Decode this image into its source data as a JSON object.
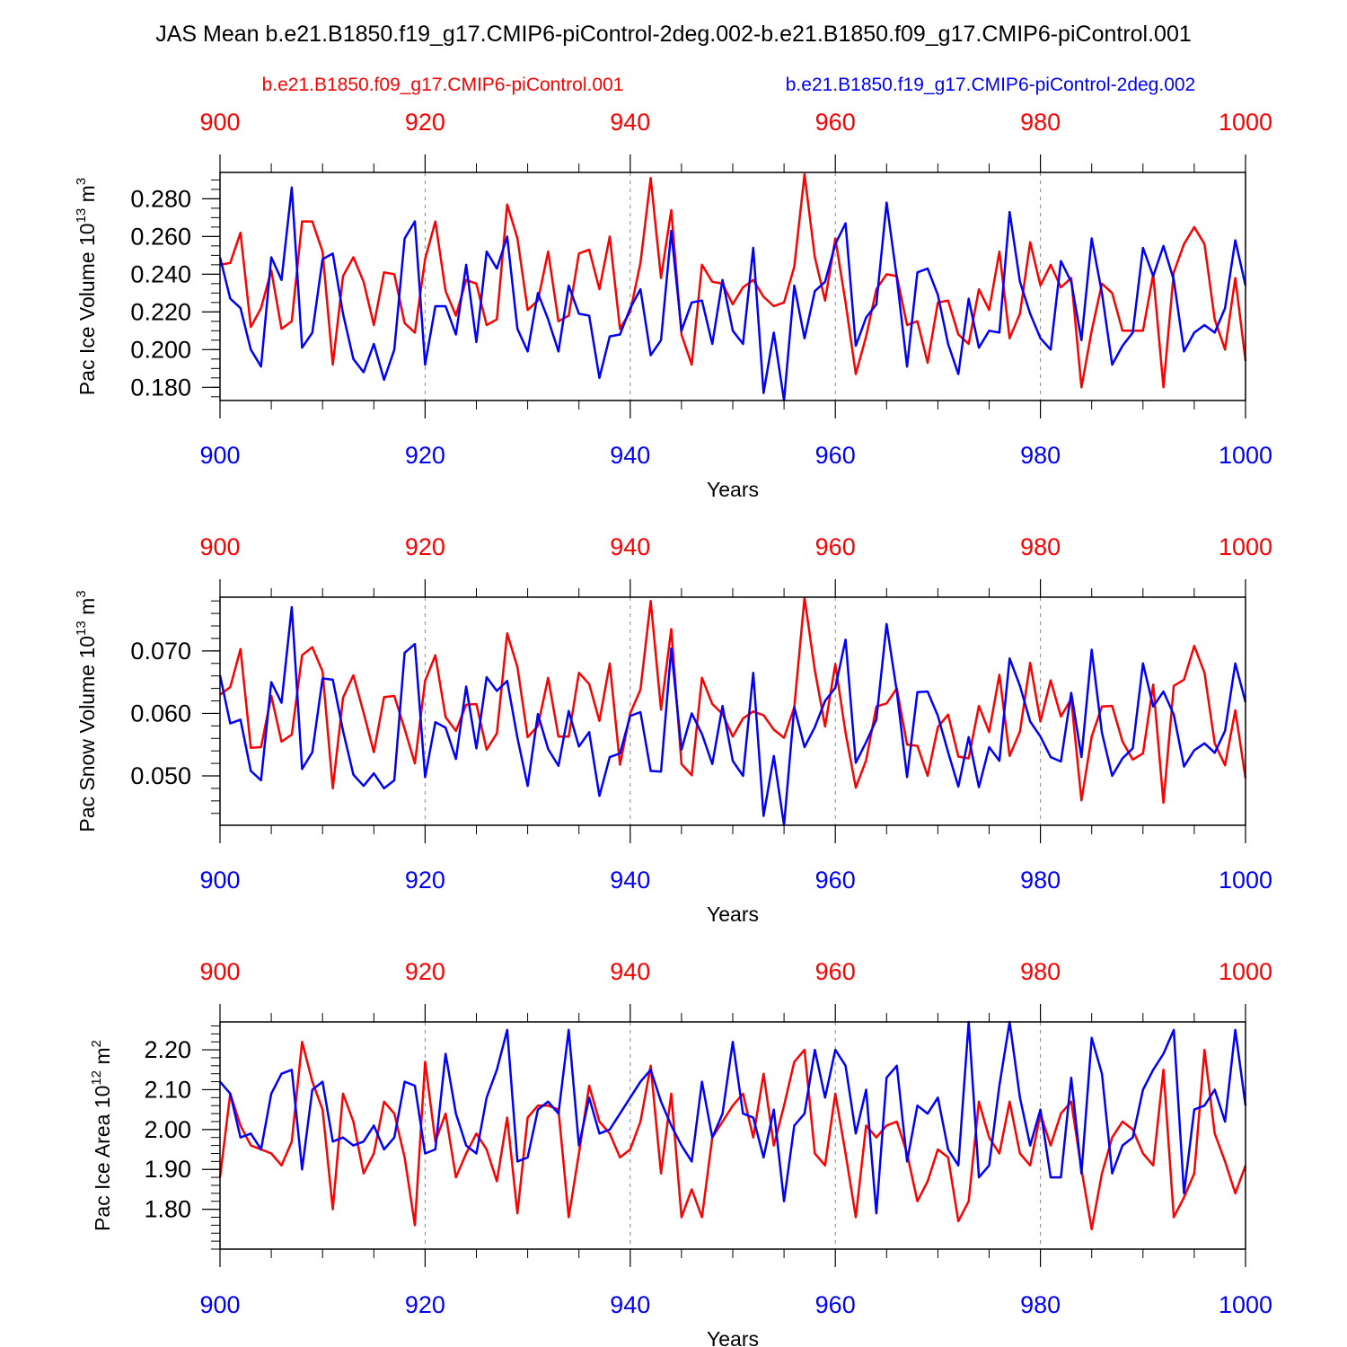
{
  "title": "JAS Mean b.e21.B1850.f19_g17.CMIP6-piControl-2deg.002-b.e21.B1850.f09_g17.CMIP6-piControl.001",
  "legend": [
    {
      "label": "b.e21.B1850.f09_g17.CMIP6-piControl.001",
      "color": "#ff0000"
    },
    {
      "label": "b.e21.B1850.f19_g17.CMIP6-piControl-2deg.002",
      "color": "#0000ff"
    }
  ],
  "colors": {
    "case_a": "#ff0000",
    "case_b": "#0000ff",
    "grid": "#888888"
  },
  "chart_data": [
    {
      "type": "line",
      "title": "",
      "xlabel": "Years",
      "ylabel": "Pac Ice Volume 10",
      "ylabel_exp": "13",
      "ylabel_unit": " m",
      "ylabel_unit_exp": "3",
      "xlim": [
        900,
        1000
      ],
      "ylim": [
        0.173,
        0.294
      ],
      "xticks": [
        "900",
        "920",
        "940",
        "960",
        "980",
        "1000"
      ],
      "yticks": [
        {
          "value": 0.18,
          "label": "0.180"
        },
        {
          "value": 0.2,
          "label": "0.200"
        },
        {
          "value": 0.22,
          "label": "0.220"
        },
        {
          "value": 0.24,
          "label": "0.240"
        },
        {
          "value": 0.26,
          "label": "0.260"
        },
        {
          "value": 0.28,
          "label": "0.280"
        }
      ],
      "yminor_step": 0.005,
      "grid": "dashed vertical at 920, 940, 960, 980",
      "x_start": 900,
      "series": [
        {
          "name": "b.e21.B1850.f09_g17.CMIP6-piControl.001",
          "color": "#ff0000",
          "values": [
            0.245,
            0.246,
            0.262,
            0.212,
            0.222,
            0.242,
            0.211,
            0.215,
            0.268,
            0.268,
            0.252,
            0.192,
            0.239,
            0.249,
            0.236,
            0.213,
            0.241,
            0.24,
            0.214,
            0.209,
            0.248,
            0.268,
            0.231,
            0.218,
            0.237,
            0.235,
            0.213,
            0.216,
            0.277,
            0.259,
            0.221,
            0.226,
            0.252,
            0.215,
            0.218,
            0.251,
            0.253,
            0.232,
            0.26,
            0.211,
            0.22,
            0.246,
            0.291,
            0.238,
            0.274,
            0.208,
            0.192,
            0.245,
            0.236,
            0.235,
            0.224,
            0.233,
            0.237,
            0.228,
            0.223,
            0.225,
            0.244,
            0.293,
            0.249,
            0.226,
            0.259,
            0.225,
            0.187,
            0.207,
            0.232,
            0.24,
            0.239,
            0.213,
            0.215,
            0.193,
            0.225,
            0.226,
            0.208,
            0.203,
            0.232,
            0.221,
            0.252,
            0.206,
            0.219,
            0.257,
            0.234,
            0.245,
            0.233,
            0.238,
            0.18,
            0.21,
            0.235,
            0.23,
            0.21,
            0.21,
            0.21,
            0.24,
            0.18,
            0.241,
            0.256,
            0.265,
            0.256,
            0.216,
            0.2,
            0.238,
            0.194
          ]
        },
        {
          "name": "b.e21.B1850.f19_g17.CMIP6-piControl-2deg.002",
          "color": "#0000ff",
          "values": [
            0.249,
            0.227,
            0.222,
            0.2,
            0.191,
            0.249,
            0.237,
            0.286,
            0.201,
            0.209,
            0.248,
            0.251,
            0.219,
            0.195,
            0.188,
            0.203,
            0.184,
            0.2,
            0.259,
            0.268,
            0.192,
            0.223,
            0.223,
            0.208,
            0.245,
            0.204,
            0.252,
            0.243,
            0.26,
            0.211,
            0.199,
            0.23,
            0.216,
            0.199,
            0.234,
            0.219,
            0.218,
            0.185,
            0.207,
            0.208,
            0.222,
            0.232,
            0.197,
            0.205,
            0.263,
            0.21,
            0.225,
            0.226,
            0.203,
            0.237,
            0.21,
            0.203,
            0.254,
            0.177,
            0.209,
            0.173,
            0.234,
            0.206,
            0.231,
            0.236,
            0.256,
            0.267,
            0.202,
            0.217,
            0.224,
            0.278,
            0.238,
            0.191,
            0.241,
            0.243,
            0.229,
            0.203,
            0.187,
            0.227,
            0.201,
            0.21,
            0.209,
            0.273,
            0.236,
            0.219,
            0.206,
            0.2,
            0.247,
            0.236,
            0.205,
            0.259,
            0.23,
            0.192,
            0.202,
            0.209,
            0.254,
            0.239,
            0.255,
            0.237,
            0.199,
            0.209,
            0.213,
            0.209,
            0.222,
            0.258,
            0.234
          ]
        }
      ]
    },
    {
      "type": "line",
      "title": "",
      "xlabel": "Years",
      "ylabel": "Pac Snow Volume 10",
      "ylabel_exp": "13",
      "ylabel_unit": " m",
      "ylabel_unit_exp": "3",
      "xlim": [
        900,
        1000
      ],
      "ylim": [
        0.0421,
        0.0786
      ],
      "xticks": [
        "900",
        "920",
        "940",
        "960",
        "980",
        "1000"
      ],
      "yticks": [
        {
          "value": 0.05,
          "label": "0.050"
        },
        {
          "value": 0.06,
          "label": "0.060"
        },
        {
          "value": 0.07,
          "label": "0.070"
        }
      ],
      "yminor_step": 0.002,
      "grid": "dashed vertical at 920, 940, 960, 980",
      "x_start": 900,
      "series": [
        {
          "name": "b.e21.B1850.f09_g17.CMIP6-piControl.001",
          "color": "#ff0000",
          "values": [
            0.063,
            0.0642,
            0.0703,
            0.0545,
            0.0546,
            0.0628,
            0.0555,
            0.0566,
            0.0693,
            0.0706,
            0.0667,
            0.048,
            0.0625,
            0.0661,
            0.0601,
            0.0538,
            0.0626,
            0.0628,
            0.0575,
            0.052,
            0.0652,
            0.0693,
            0.0594,
            0.0572,
            0.0614,
            0.0615,
            0.0542,
            0.0568,
            0.0728,
            0.0674,
            0.0562,
            0.058,
            0.0657,
            0.0563,
            0.0563,
            0.0665,
            0.0647,
            0.0588,
            0.068,
            0.0518,
            0.06,
            0.0638,
            0.078,
            0.0606,
            0.0735,
            0.0519,
            0.0501,
            0.0657,
            0.0615,
            0.0599,
            0.0563,
            0.0592,
            0.0603,
            0.0597,
            0.0574,
            0.0561,
            0.061,
            0.0785,
            0.0669,
            0.0579,
            0.0679,
            0.0569,
            0.0481,
            0.0525,
            0.0611,
            0.0616,
            0.064,
            0.055,
            0.0548,
            0.05,
            0.0578,
            0.0598,
            0.0531,
            0.0528,
            0.0612,
            0.057,
            0.0662,
            0.0532,
            0.0571,
            0.0681,
            0.0587,
            0.0653,
            0.0595,
            0.0623,
            0.0461,
            0.0563,
            0.0611,
            0.0612,
            0.0555,
            0.0526,
            0.0536,
            0.0646,
            0.0457,
            0.0644,
            0.0654,
            0.0708,
            0.0665,
            0.0552,
            0.0517,
            0.0605,
            0.0496
          ]
        },
        {
          "name": "b.e21.B1850.f19_g17.CMIP6-piControl-2deg.002",
          "color": "#0000ff",
          "values": [
            0.0661,
            0.0584,
            0.059,
            0.0508,
            0.0493,
            0.065,
            0.0617,
            0.077,
            0.0511,
            0.0538,
            0.0656,
            0.0654,
            0.0572,
            0.0502,
            0.0484,
            0.0504,
            0.048,
            0.0493,
            0.0697,
            0.0711,
            0.0498,
            0.0586,
            0.0577,
            0.0527,
            0.0643,
            0.0544,
            0.0658,
            0.0636,
            0.0652,
            0.0561,
            0.0484,
            0.0599,
            0.0543,
            0.0516,
            0.0604,
            0.0547,
            0.057,
            0.0468,
            0.053,
            0.0536,
            0.0596,
            0.0602,
            0.0508,
            0.0507,
            0.0704,
            0.0542,
            0.06,
            0.0567,
            0.0519,
            0.0612,
            0.0524,
            0.05,
            0.0665,
            0.0436,
            0.0532,
            0.0421,
            0.061,
            0.0546,
            0.0578,
            0.062,
            0.0641,
            0.0718,
            0.0521,
            0.0554,
            0.059,
            0.0743,
            0.0635,
            0.0498,
            0.0634,
            0.0635,
            0.0596,
            0.0538,
            0.0483,
            0.0562,
            0.0482,
            0.0546,
            0.0524,
            0.0688,
            0.0644,
            0.0587,
            0.0563,
            0.053,
            0.0523,
            0.0633,
            0.053,
            0.0702,
            0.0569,
            0.05,
            0.0528,
            0.0544,
            0.068,
            0.0611,
            0.0635,
            0.0598,
            0.0515,
            0.0541,
            0.0552,
            0.0537,
            0.0572,
            0.068,
            0.0618
          ]
        }
      ]
    },
    {
      "type": "line",
      "title": "",
      "xlabel": "Years",
      "ylabel": "Pac Ice Area 10",
      "ylabel_exp": "12",
      "ylabel_unit": " m",
      "ylabel_unit_exp": "2",
      "xlim": [
        900,
        1000
      ],
      "ylim": [
        1.7,
        2.27
      ],
      "xticks": [
        "900",
        "920",
        "940",
        "960",
        "980",
        "1000"
      ],
      "yticks": [
        {
          "value": 1.8,
          "label": "1.80"
        },
        {
          "value": 1.9,
          "label": "1.90"
        },
        {
          "value": 2.0,
          "label": "2.00"
        },
        {
          "value": 2.1,
          "label": "2.10"
        },
        {
          "value": 2.2,
          "label": "2.20"
        }
      ],
      "yminor_step": 0.02,
      "grid": "dashed vertical at 920, 940, 960, 980",
      "x_start": 900,
      "series": [
        {
          "name": "b.e21.B1850.f09_g17.CMIP6-piControl.001",
          "color": "#ff0000",
          "values": [
            1.88,
            2.09,
            2.01,
            1.96,
            1.95,
            1.94,
            1.91,
            1.97,
            2.22,
            2.12,
            2.05,
            1.8,
            2.09,
            2.02,
            1.89,
            1.94,
            2.07,
            2.04,
            1.93,
            1.76,
            2.17,
            1.97,
            2.04,
            1.88,
            1.94,
            1.99,
            1.95,
            1.87,
            2.03,
            1.79,
            2.03,
            2.06,
            2.06,
            2.05,
            1.78,
            1.94,
            2.11,
            2.02,
            1.99,
            1.93,
            1.95,
            2.02,
            2.16,
            1.89,
            2.09,
            1.78,
            1.85,
            1.78,
            1.98,
            2.02,
            2.06,
            2.09,
            1.98,
            2.14,
            1.96,
            2.06,
            2.17,
            2.2,
            1.94,
            1.91,
            2.09,
            1.94,
            1.78,
            2.01,
            1.98,
            2.01,
            2.02,
            1.94,
            1.82,
            1.87,
            1.95,
            1.93,
            1.77,
            1.82,
            2.07,
            1.98,
            1.94,
            2.07,
            1.94,
            1.91,
            2.04,
            1.96,
            2.04,
            2.07,
            1.9,
            1.75,
            1.89,
            1.98,
            2.02,
            2.0,
            1.94,
            1.91,
            2.15,
            1.78,
            1.83,
            1.89,
            2.2,
            1.99,
            1.92,
            1.84,
            1.91
          ]
        },
        {
          "name": "b.e21.B1850.f19_g17.CMIP6-piControl-2deg.002",
          "color": "#0000ff",
          "values": [
            2.12,
            2.09,
            1.98,
            1.99,
            1.95,
            2.09,
            2.14,
            2.15,
            1.9,
            2.1,
            2.12,
            1.97,
            1.98,
            1.96,
            1.97,
            2.01,
            1.95,
            1.98,
            2.12,
            2.11,
            1.94,
            1.95,
            2.19,
            2.04,
            1.96,
            1.94,
            2.08,
            2.15,
            2.25,
            1.92,
            1.93,
            2.05,
            2.07,
            2.04,
            2.25,
            1.96,
            2.08,
            1.99,
            2.0,
            2.04,
            2.08,
            2.12,
            2.15,
            2.07,
            2.01,
            1.96,
            1.92,
            2.12,
            1.98,
            2.04,
            2.22,
            2.04,
            2.03,
            1.93,
            2.05,
            1.82,
            2.01,
            2.04,
            2.2,
            2.08,
            2.2,
            2.16,
            1.99,
            2.1,
            1.79,
            2.13,
            2.16,
            1.92,
            2.06,
            2.04,
            2.08,
            1.95,
            1.91,
            2.27,
            1.88,
            1.91,
            2.11,
            2.27,
            2.08,
            1.96,
            2.05,
            1.88,
            1.88,
            2.13,
            1.89,
            2.23,
            2.14,
            1.89,
            1.96,
            1.98,
            2.1,
            2.15,
            2.19,
            2.25,
            1.84,
            2.05,
            2.06,
            2.1,
            2.02,
            2.25,
            2.06
          ]
        }
      ]
    }
  ]
}
